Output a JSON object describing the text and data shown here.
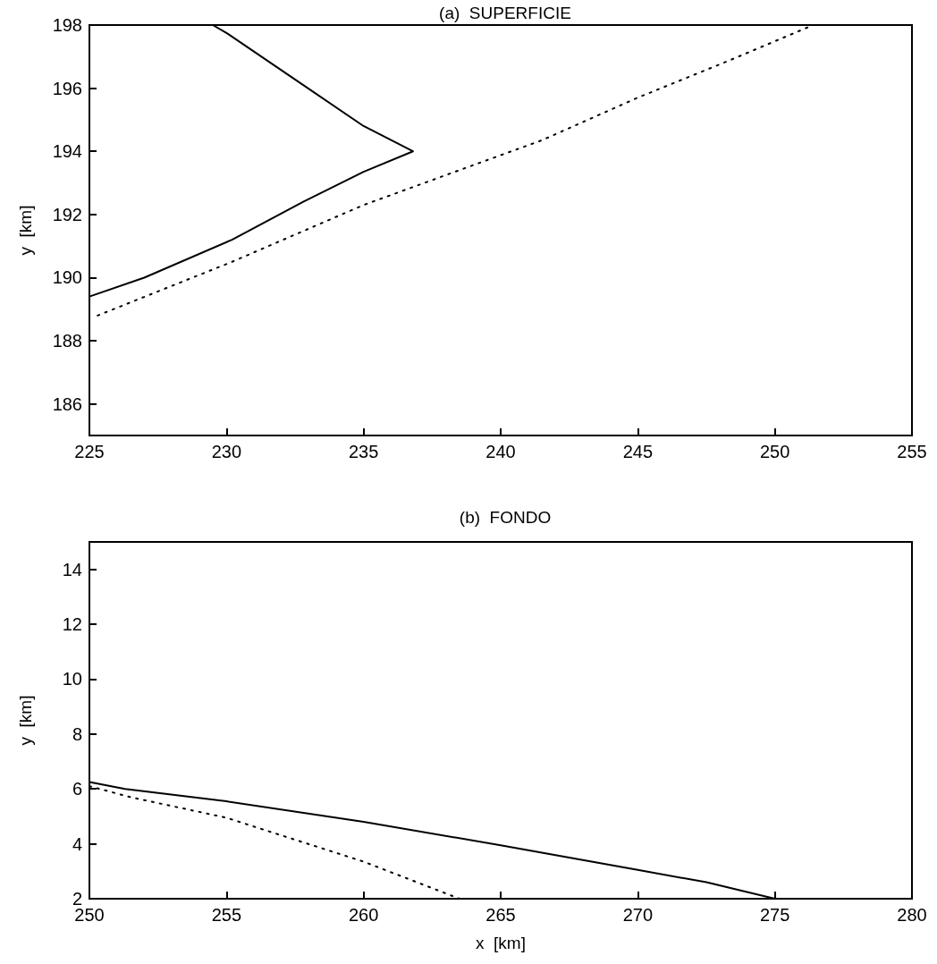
{
  "chart_data": [
    {
      "type": "line",
      "title": "(a)  SUPERFICIE",
      "ylabel": "y  [km]",
      "xlim": [
        225,
        255
      ],
      "xticks": [
        225,
        230,
        235,
        240,
        245,
        250,
        255
      ],
      "ylim": [
        185,
        198
      ],
      "yticks": [
        186,
        188,
        190,
        192,
        194,
        196,
        198
      ],
      "grid": false,
      "marker": "none",
      "series": [
        {
          "color": "#000000",
          "line_style": "solid",
          "x": [
            229.5,
            230,
            232.8,
            235,
            236.8,
            235,
            232.8,
            230.2,
            227,
            225
          ],
          "values": [
            198,
            197.75,
            196.1,
            194.8,
            194,
            193.35,
            192.4,
            191.2,
            190,
            189.4
          ]
        },
        {
          "color": "#000000",
          "line_style": "dotted",
          "x": [
            225.3,
            230.2,
            235,
            238.8,
            241.5,
            245,
            248.4,
            251.4
          ],
          "values": [
            188.8,
            190.5,
            192.3,
            193.5,
            194.35,
            195.7,
            196.9,
            198
          ]
        }
      ]
    },
    {
      "type": "line",
      "title": "(b)  FONDO",
      "xlabel": "x  [km]",
      "ylabel": "y  [km]",
      "xlim": [
        250,
        280
      ],
      "xticks": [
        250,
        255,
        260,
        265,
        270,
        275,
        280
      ],
      "ylim": [
        2,
        15
      ],
      "yticks": [
        2,
        4,
        6,
        8,
        10,
        12,
        14
      ],
      "grid": false,
      "marker": "none",
      "series": [
        {
          "color": "#000000",
          "line_style": "solid",
          "x": [
            250,
            251.3,
            255,
            260,
            265,
            270,
            272.5,
            275
          ],
          "values": [
            6.25,
            6.0,
            5.55,
            4.8,
            3.95,
            3.05,
            2.6,
            2.0
          ]
        },
        {
          "color": "#000000",
          "line_style": "dotted",
          "x": [
            250,
            251.5,
            255,
            260,
            263.5
          ],
          "values": [
            6.1,
            5.7,
            4.95,
            3.35,
            2.0
          ]
        }
      ]
    }
  ]
}
